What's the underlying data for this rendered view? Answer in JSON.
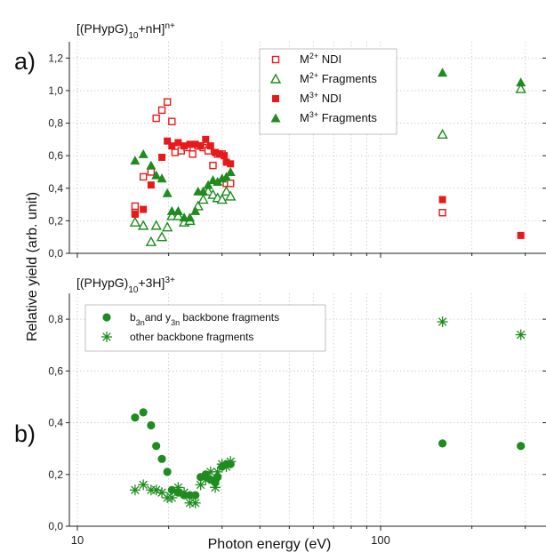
{
  "figure": {
    "ylabel": "Relative yield (arb. unit)",
    "xlabel": "Photon energy (eV)"
  },
  "colors": {
    "red": "#e8191b",
    "green": "#1e8c1e",
    "grid": "#c8c8c8"
  },
  "chart_data": [
    {
      "type": "scatter",
      "panel_letter": "a)",
      "title": "[(PHypG)10+nH]n+",
      "x_scale": "log",
      "xlim": [
        10,
        500
      ],
      "ylim": [
        0,
        1.3
      ],
      "x_ticks": [
        "10",
        "100"
      ],
      "y_ticks": [
        "0,0",
        "0,2",
        "0,4",
        "0,6",
        "0,8",
        "1,0",
        "1,2"
      ],
      "grid": true,
      "legend_position": "top-center",
      "series": [
        {
          "name": "M2+ NDI",
          "legend_base": "M",
          "legend_sup": "2+",
          "legend_rest": " NDI",
          "marker": "square-open",
          "color": "red",
          "points": [
            [
              15.5,
              0.29
            ],
            [
              15.5,
              0.25
            ],
            [
              16.5,
              0.47
            ],
            [
              17.5,
              0.5
            ],
            [
              18.2,
              0.83
            ],
            [
              19.0,
              0.88
            ],
            [
              19.8,
              0.93
            ],
            [
              20.5,
              0.81
            ],
            [
              21.0,
              0.62
            ],
            [
              22.0,
              0.63
            ],
            [
              23.0,
              0.65
            ],
            [
              24.0,
              0.61
            ],
            [
              25.0,
              0.66
            ],
            [
              26.0,
              0.65
            ],
            [
              27.0,
              0.63
            ],
            [
              28.0,
              0.54
            ],
            [
              29.0,
              0.61
            ],
            [
              30.0,
              0.61
            ],
            [
              31.0,
              0.43
            ],
            [
              32.0,
              0.43
            ],
            [
              160,
              0.25
            ]
          ]
        },
        {
          "name": "M2+ Fragments",
          "legend_base": "M",
          "legend_sup": "2+",
          "legend_rest": " Fragments",
          "marker": "triangle-open",
          "color": "green",
          "points": [
            [
              15.5,
              0.19
            ],
            [
              16.5,
              0.17
            ],
            [
              17.5,
              0.07
            ],
            [
              18.2,
              0.17
            ],
            [
              19.0,
              0.1
            ],
            [
              19.8,
              0.16
            ],
            [
              20.5,
              0.23
            ],
            [
              21.5,
              0.23
            ],
            [
              22.5,
              0.19
            ],
            [
              23.5,
              0.2
            ],
            [
              25.0,
              0.29
            ],
            [
              26.0,
              0.33
            ],
            [
              27.0,
              0.38
            ],
            [
              28.0,
              0.36
            ],
            [
              29.0,
              0.34
            ],
            [
              30.0,
              0.33
            ],
            [
              31.0,
              0.38
            ],
            [
              32.0,
              0.35
            ],
            [
              160,
              0.73
            ],
            [
              290,
              1.01
            ]
          ]
        },
        {
          "name": "M3+ NDI",
          "legend_base": "M",
          "legend_sup": "3+",
          "legend_rest": " NDI",
          "marker": "square-filled",
          "color": "red",
          "points": [
            [
              15.5,
              0.24
            ],
            [
              16.5,
              0.27
            ],
            [
              17.5,
              0.42
            ],
            [
              19.0,
              0.59
            ],
            [
              19.8,
              0.69
            ],
            [
              20.5,
              0.66
            ],
            [
              21.5,
              0.68
            ],
            [
              22.5,
              0.66
            ],
            [
              23.5,
              0.67
            ],
            [
              24.5,
              0.67
            ],
            [
              25.5,
              0.66
            ],
            [
              26.5,
              0.7
            ],
            [
              27.5,
              0.66
            ],
            [
              28.5,
              0.62
            ],
            [
              29.5,
              0.61
            ],
            [
              30.5,
              0.6
            ],
            [
              31.0,
              0.56
            ],
            [
              32.0,
              0.55
            ],
            [
              160,
              0.33
            ],
            [
              290,
              0.11
            ]
          ]
        },
        {
          "name": "M3+ Fragments",
          "legend_base": "M",
          "legend_sup": "3+",
          "legend_rest": " Fragments",
          "marker": "triangle-filled",
          "color": "green",
          "points": [
            [
              15.5,
              0.57
            ],
            [
              16.5,
              0.61
            ],
            [
              17.5,
              0.54
            ],
            [
              18.2,
              0.48
            ],
            [
              19.0,
              0.46
            ],
            [
              19.8,
              0.37
            ],
            [
              20.5,
              0.26
            ],
            [
              21.5,
              0.26
            ],
            [
              22.5,
              0.22
            ],
            [
              23.5,
              0.22
            ],
            [
              24.5,
              0.26
            ],
            [
              25.0,
              0.38
            ],
            [
              26.0,
              0.38
            ],
            [
              27.0,
              0.42
            ],
            [
              28.0,
              0.45
            ],
            [
              29.0,
              0.44
            ],
            [
              30.0,
              0.46
            ],
            [
              31.0,
              0.47
            ],
            [
              32.0,
              0.5
            ],
            [
              160,
              1.11
            ],
            [
              290,
              1.05
            ]
          ]
        }
      ]
    },
    {
      "type": "scatter",
      "panel_letter": "b)",
      "title": "[(PHypG)10+3H]3+",
      "x_scale": "log",
      "xlim": [
        10,
        500
      ],
      "ylim": [
        0,
        0.9
      ],
      "x_ticks": [
        "10",
        "100"
      ],
      "y_ticks": [
        "0,0",
        "0,2",
        "0,4",
        "0,6",
        "0,8"
      ],
      "grid": true,
      "legend_position": "top-left",
      "series": [
        {
          "name": "b3n and y3n backbone fragments",
          "legend_parts": [
            "b",
            "3n",
            "and y",
            "3n",
            " backbone fragments"
          ],
          "marker": "circle-filled",
          "color": "green",
          "points": [
            [
              15.5,
              0.42
            ],
            [
              16.5,
              0.44
            ],
            [
              17.5,
              0.39
            ],
            [
              18.2,
              0.31
            ],
            [
              19.0,
              0.26
            ],
            [
              19.8,
              0.21
            ],
            [
              20.5,
              0.14
            ],
            [
              21.5,
              0.13
            ],
            [
              22.5,
              0.12
            ],
            [
              23.5,
              0.12
            ],
            [
              24.5,
              0.12
            ],
            [
              25.5,
              0.19
            ],
            [
              26.5,
              0.2
            ],
            [
              27.5,
              0.18
            ],
            [
              28.5,
              0.17
            ],
            [
              29.0,
              0.19
            ],
            [
              30.0,
              0.23
            ],
            [
              31.0,
              0.24
            ],
            [
              32.0,
              0.24
            ],
            [
              160,
              0.32
            ],
            [
              290,
              0.31
            ]
          ]
        },
        {
          "name": "other backbone fragments",
          "legend_parts": [
            "other backbone fragments"
          ],
          "marker": "asterisk",
          "color": "green",
          "points": [
            [
              15.5,
              0.14
            ],
            [
              16.5,
              0.16
            ],
            [
              17.5,
              0.14
            ],
            [
              18.2,
              0.14
            ],
            [
              19.0,
              0.13
            ],
            [
              19.8,
              0.11
            ],
            [
              20.5,
              0.11
            ],
            [
              21.5,
              0.15
            ],
            [
              22.5,
              0.13
            ],
            [
              23.5,
              0.09
            ],
            [
              24.5,
              0.09
            ],
            [
              25.5,
              0.16
            ],
            [
              26.5,
              0.18
            ],
            [
              27.5,
              0.21
            ],
            [
              28.5,
              0.15
            ],
            [
              29.0,
              0.21
            ],
            [
              30.0,
              0.24
            ],
            [
              31.0,
              0.23
            ],
            [
              32.0,
              0.25
            ],
            [
              160,
              0.79
            ],
            [
              290,
              0.74
            ]
          ]
        }
      ]
    }
  ]
}
